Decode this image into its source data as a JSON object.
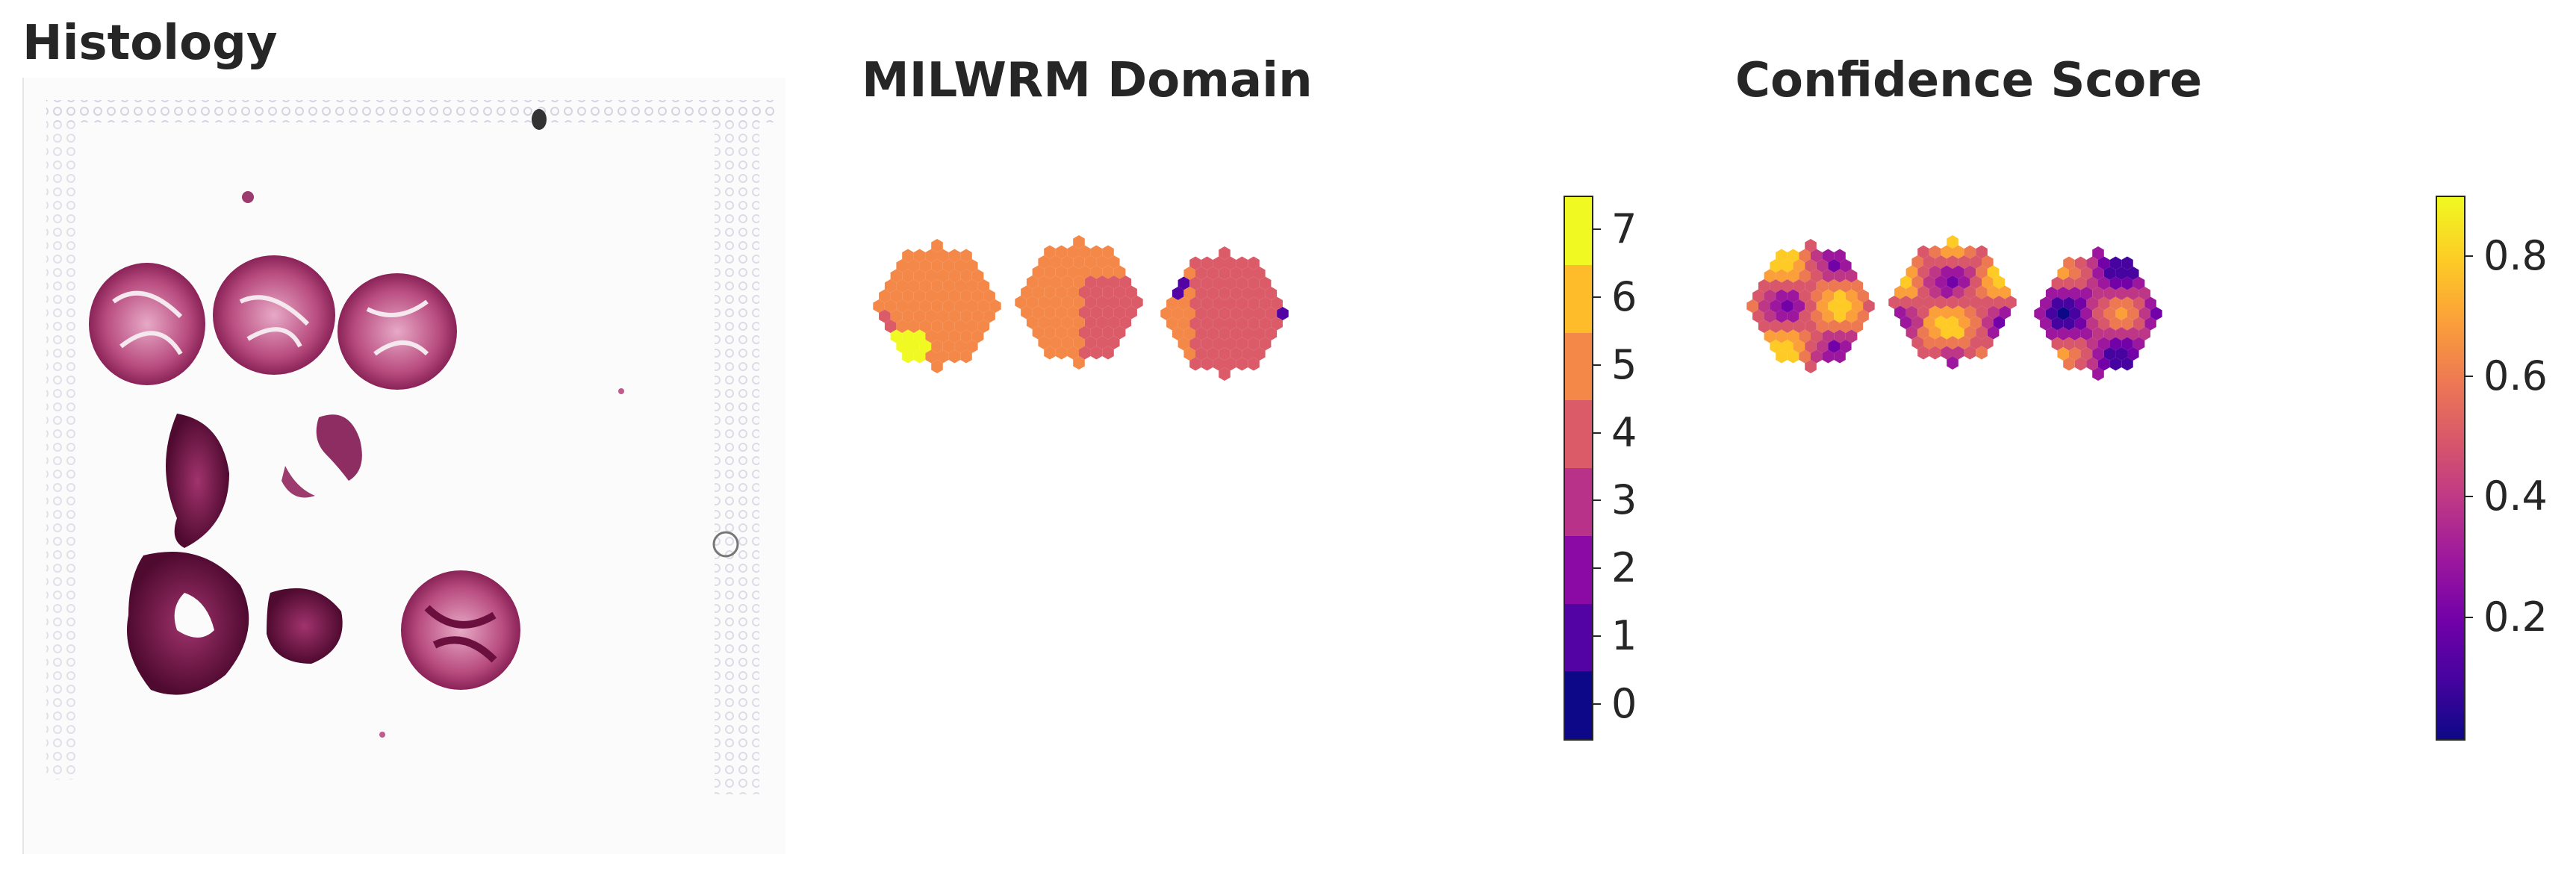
{
  "titles": {
    "histology": "Histology",
    "domain": "MILWRM Domain",
    "confidence": "Confidence Score"
  },
  "domain_colorbar": {
    "ticks": [
      "0",
      "1",
      "2",
      "3",
      "4",
      "5",
      "6",
      "7"
    ],
    "colors": [
      "#0d0887",
      "#5302a3",
      "#8b0aa5",
      "#b83289",
      "#db5c68",
      "#f48849",
      "#febc2a",
      "#f0f921"
    ]
  },
  "confidence_colorbar": {
    "ticks": [
      "0.2",
      "0.4",
      "0.6",
      "0.8"
    ],
    "tick_values": [
      0.2,
      0.4,
      0.6,
      0.8
    ],
    "range": [
      0.0,
      0.9
    ],
    "colormap": "plasma"
  },
  "histology_stain_colors": {
    "tissue_light": "#c25a8a",
    "tissue_dark": "#6b0f3f",
    "background": "#fbfbfb",
    "fiducial": "#cfcfe0"
  }
}
